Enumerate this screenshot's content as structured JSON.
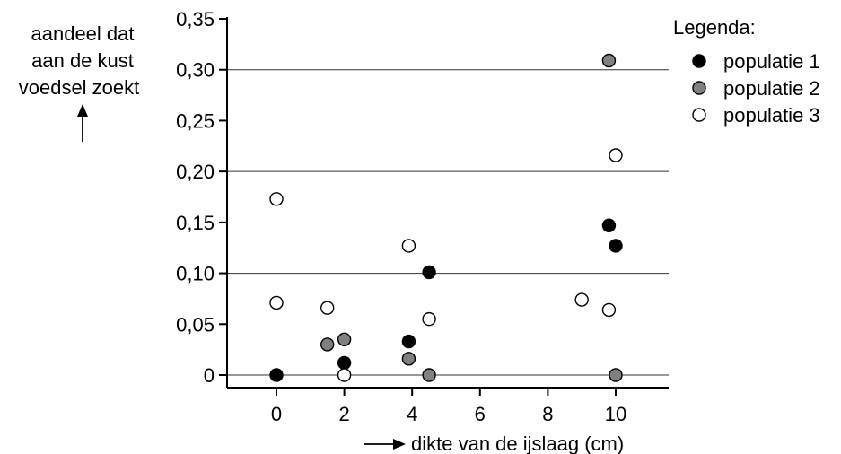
{
  "chart_data": {
    "type": "scatter",
    "title": "",
    "ylabel_lines": [
      "aandeel dat",
      "aan de kust",
      "voedsel zoekt"
    ],
    "xlabel": "dikte van de ijslaag (cm)",
    "xlim": [
      -1.5,
      11.5
    ],
    "ylim": [
      0,
      0.35
    ],
    "x_ticks": [
      0,
      2,
      4,
      6,
      8,
      10
    ],
    "x_tick_labels": [
      "0",
      "2",
      "4",
      "6",
      "8",
      "10"
    ],
    "y_ticks": [
      0,
      0.05,
      0.1,
      0.15,
      0.2,
      0.25,
      0.3,
      0.35
    ],
    "y_tick_labels": [
      "0",
      "0,05",
      "0,10",
      "0,15",
      "0,20",
      "0,25",
      "0,30",
      "0,35"
    ],
    "grid_y": [
      0,
      0.1,
      0.2,
      0.3
    ],
    "legend": {
      "title": "Legenda:",
      "placement": "top-right"
    },
    "series": [
      {
        "name": "populatie 1",
        "fill": "#000000",
        "stroke": "#000000",
        "points": [
          [
            0,
            0
          ],
          [
            2,
            0.012
          ],
          [
            3.9,
            0.033
          ],
          [
            4.5,
            0.101
          ],
          [
            9.8,
            0.147
          ],
          [
            10,
            0.127
          ]
        ]
      },
      {
        "name": "populatie 2",
        "fill": "#808080",
        "stroke": "#000000",
        "points": [
          [
            1.5,
            0.03
          ],
          [
            2,
            0.035
          ],
          [
            3.9,
            0.016
          ],
          [
            4.5,
            0
          ],
          [
            9.8,
            0.309
          ],
          [
            10,
            0
          ]
        ]
      },
      {
        "name": "populatie 3",
        "fill": "#ffffff",
        "stroke": "#000000",
        "points": [
          [
            0,
            0.173
          ],
          [
            0,
            0.071
          ],
          [
            1.5,
            0.066
          ],
          [
            2,
            0
          ],
          [
            3.9,
            0.127
          ],
          [
            4.5,
            0.055
          ],
          [
            9,
            0.074
          ],
          [
            9.8,
            0.064
          ],
          [
            10,
            0.216
          ]
        ]
      }
    ]
  }
}
